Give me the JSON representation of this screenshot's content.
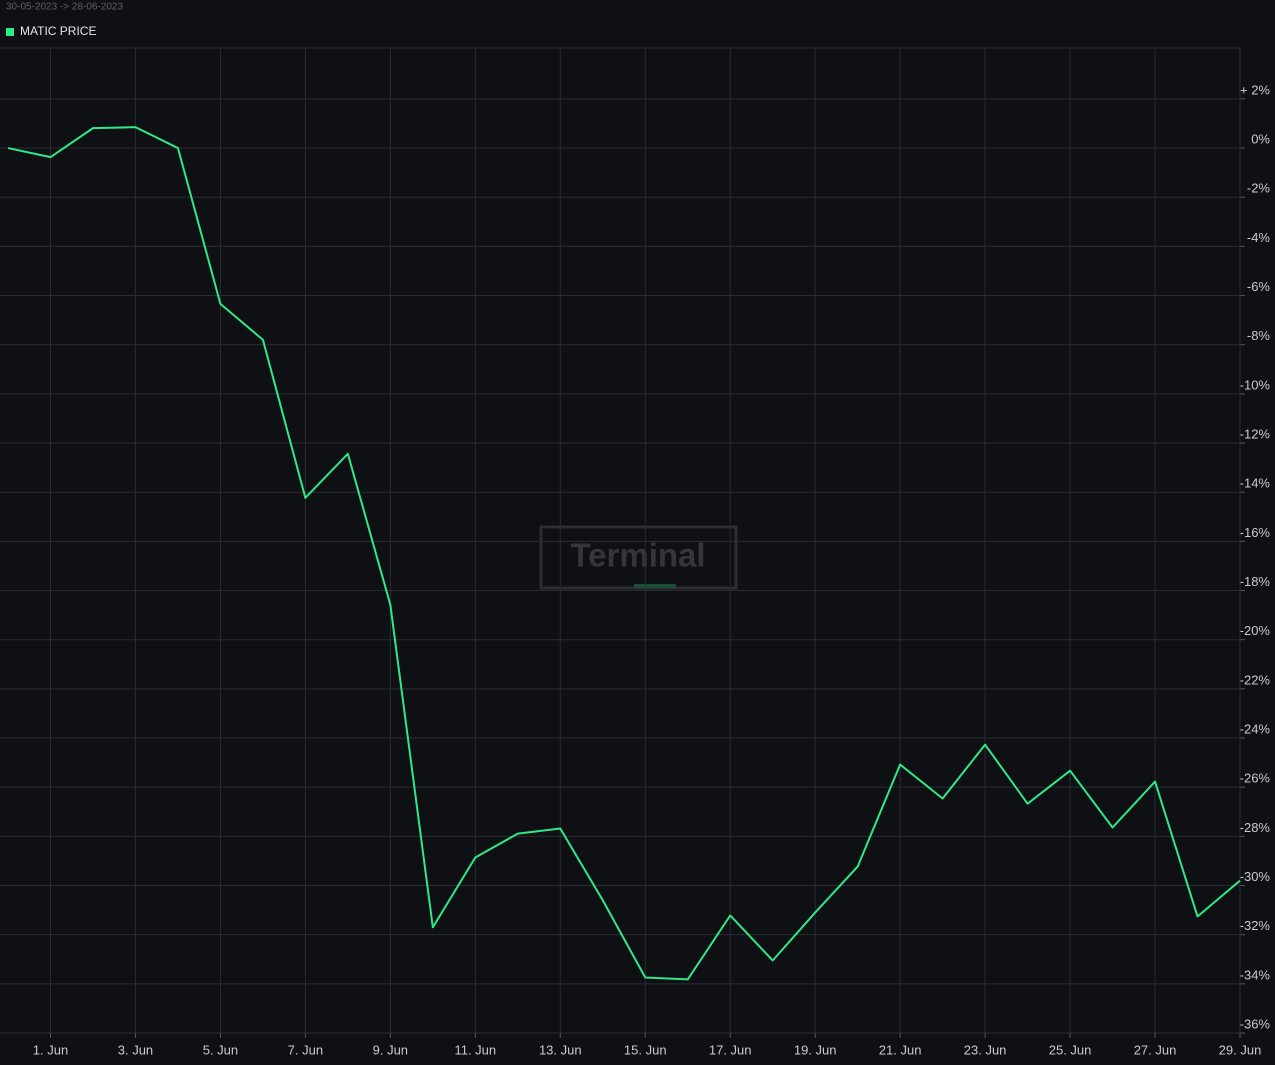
{
  "chart_data": {
    "type": "line",
    "subtitle": "30-05-2023 -> 28-06-2023",
    "watermark": "Terminal",
    "categories": [
      null,
      "1. Jun",
      null,
      "3. Jun",
      null,
      "5. Jun",
      null,
      "7. Jun",
      null,
      "9. Jun",
      null,
      "11. Jun",
      null,
      "13. Jun",
      null,
      "15. Jun",
      null,
      "17. Jun",
      null,
      "19. Jun",
      null,
      "21. Jun",
      null,
      "23. Jun",
      null,
      "25. Jun",
      null,
      "27. Jun",
      null,
      "29. Jun"
    ],
    "series": [
      {
        "name": "MATIC PRICE",
        "color": "#2ee88a",
        "values": [
          0,
          -0.37,
          0.81,
          0.85,
          0,
          -6.34,
          -7.8,
          -14.23,
          -12.44,
          -18.58,
          -31.7,
          -28.86,
          -27.89,
          -27.68,
          -30.6,
          -33.74,
          -33.82,
          -31.22,
          -33.05,
          -31.1,
          -29.23,
          -25.08,
          -26.46,
          -24.27,
          -26.67,
          -25.33,
          -27.64,
          -25.77,
          -31.26,
          -29.8
        ]
      }
    ],
    "ylim": [
      -36,
      4.07
    ],
    "yticks": [
      {
        "value": 2,
        "label": "+ 2%"
      },
      {
        "value": 0,
        "label": "0%"
      },
      {
        "value": -2,
        "label": "-2%"
      },
      {
        "value": -4,
        "label": "-4%"
      },
      {
        "value": -6,
        "label": "-6%"
      },
      {
        "value": -8,
        "label": "-8%"
      },
      {
        "value": -10,
        "label": "-10%"
      },
      {
        "value": -12,
        "label": "-12%"
      },
      {
        "value": -14,
        "label": "-14%"
      },
      {
        "value": -16,
        "label": "-16%"
      },
      {
        "value": -18,
        "label": "-18%"
      },
      {
        "value": -20,
        "label": "-20%"
      },
      {
        "value": -22,
        "label": "-22%"
      },
      {
        "value": -24,
        "label": "-24%"
      },
      {
        "value": -26,
        "label": "-26%"
      },
      {
        "value": -28,
        "label": "-28%"
      },
      {
        "value": -30,
        "label": "-30%"
      },
      {
        "value": -32,
        "label": "-32%"
      },
      {
        "value": -34,
        "label": "-34%"
      },
      {
        "value": -36,
        "label": "-36%"
      }
    ],
    "grid": true,
    "legend": "top-left"
  }
}
